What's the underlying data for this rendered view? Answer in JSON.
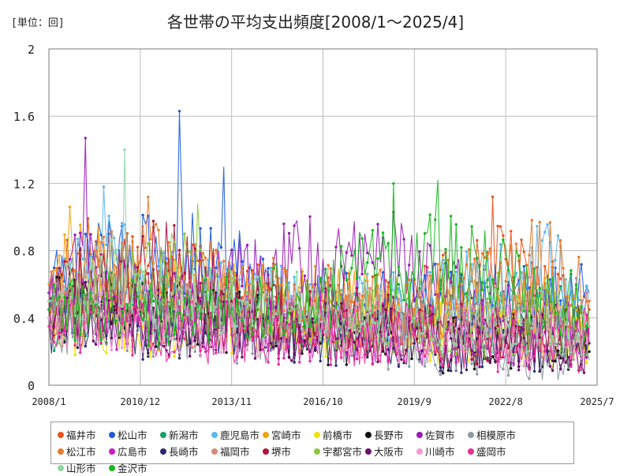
{
  "header": {
    "unit_label": "[単位：回]",
    "title": "各世帯の平均支出頻度[2008/1～2025/4]"
  },
  "chart_data": {
    "type": "line",
    "title": "各世帯の平均支出頻度[2008/1～2025/4]",
    "subtitle": "",
    "xlabel": "",
    "ylabel": "[単位：回]",
    "x_range": [
      "2008/1",
      "2025/7"
    ],
    "x_ticks": [
      "2008/1",
      "2010/12",
      "2013/11",
      "2016/10",
      "2019/9",
      "2022/8",
      "2025/7"
    ],
    "ylim": [
      0,
      2
    ],
    "y_ticks": [
      "0",
      "0.4",
      "0.8",
      "1.2",
      "1.6",
      "2"
    ],
    "grid": true,
    "legend_position": "bottom",
    "series": [
      {
        "name": "福井市",
        "color": "#e8541c",
        "keypoints": [
          [
            "2008/1",
            0.55
          ],
          [
            "2009/6",
            0.75
          ],
          [
            "2011/8",
            0.55
          ],
          [
            "2014/2",
            0.5
          ],
          [
            "2016/10",
            0.45
          ],
          [
            "2019/1",
            0.45
          ],
          [
            "2021/6",
            0.6
          ],
          [
            "2022/3",
            1.12
          ],
          [
            "2023/9",
            0.55
          ],
          [
            "2025/4",
            0.45
          ]
        ]
      },
      {
        "name": "松山市",
        "color": "#1e5bd6",
        "keypoints": [
          [
            "2008/1",
            0.55
          ],
          [
            "2009/3",
            0.9
          ],
          [
            "2012/3",
            1.63
          ],
          [
            "2013/8",
            1.3
          ],
          [
            "2016/1",
            0.45
          ],
          [
            "2019/9",
            0.5
          ],
          [
            "2022/8",
            0.5
          ],
          [
            "2025/4",
            0.55
          ]
        ]
      },
      {
        "name": "新潟市",
        "color": "#17a06b",
        "keypoints": [
          [
            "2008/1",
            0.4
          ],
          [
            "2010/6",
            0.5
          ],
          [
            "2013/11",
            0.45
          ],
          [
            "2016/10",
            0.4
          ],
          [
            "2019/9",
            0.4
          ],
          [
            "2022/8",
            0.45
          ],
          [
            "2025/4",
            0.4
          ]
        ]
      },
      {
        "name": "鹿児島市",
        "color": "#5fb8ea",
        "keypoints": [
          [
            "2008/1",
            0.6
          ],
          [
            "2009/10",
            1.18
          ],
          [
            "2012/1",
            0.55
          ],
          [
            "2016/1",
            0.5
          ],
          [
            "2019/9",
            0.45
          ],
          [
            "2024/1",
            0.85
          ],
          [
            "2025/4",
            0.5
          ]
        ]
      },
      {
        "name": "宮崎市",
        "color": "#f0a416",
        "keypoints": [
          [
            "2008/1",
            0.6
          ],
          [
            "2008/9",
            1.06
          ],
          [
            "2011/6",
            0.55
          ],
          [
            "2015/10",
            0.5
          ],
          [
            "2019/9",
            0.45
          ],
          [
            "2022/8",
            0.45
          ],
          [
            "2025/4",
            0.4
          ]
        ]
      },
      {
        "name": "前橋市",
        "color": "#f3e000",
        "keypoints": [
          [
            "2008/1",
            0.4
          ],
          [
            "2011/1",
            0.35
          ],
          [
            "2016/10",
            0.35
          ],
          [
            "2019/9",
            0.3
          ],
          [
            "2022/8",
            0.3
          ],
          [
            "2025/4",
            0.25
          ]
        ]
      },
      {
        "name": "長野市",
        "color": "#111111",
        "keypoints": [
          [
            "2008/1",
            0.45
          ],
          [
            "2010/12",
            0.4
          ],
          [
            "2013/11",
            0.4
          ],
          [
            "2016/10",
            0.3
          ],
          [
            "2019/9",
            0.25
          ],
          [
            "2022/8",
            0.25
          ],
          [
            "2025/4",
            0.2
          ]
        ]
      },
      {
        "name": "佐賀市",
        "color": "#9b1ab8",
        "keypoints": [
          [
            "2008/1",
            0.55
          ],
          [
            "2009/3",
            1.47
          ],
          [
            "2010/12",
            0.5
          ],
          [
            "2016/8",
            0.85
          ],
          [
            "2019/1",
            1.03
          ],
          [
            "2022/8",
            0.4
          ],
          [
            "2025/4",
            0.35
          ]
        ]
      },
      {
        "name": "相模原市",
        "color": "#8f9aa6",
        "keypoints": [
          [
            "2008/1",
            0.4
          ],
          [
            "2010/12",
            0.35
          ],
          [
            "2016/10",
            0.3
          ],
          [
            "2019/9",
            0.25
          ],
          [
            "2022/8",
            0.2
          ],
          [
            "2025/4",
            0.15
          ]
        ]
      },
      {
        "name": "松江市",
        "color": "#e87b2c",
        "keypoints": [
          [
            "2008/1",
            0.5
          ],
          [
            "2011/3",
            1.12
          ],
          [
            "2013/11",
            0.55
          ],
          [
            "2016/10",
            0.5
          ],
          [
            "2019/9",
            0.45
          ],
          [
            "2023/9",
            0.97
          ],
          [
            "2025/4",
            0.5
          ]
        ]
      },
      {
        "name": "広島市",
        "color": "#c81ec8",
        "keypoints": [
          [
            "2008/1",
            0.45
          ],
          [
            "2010/12",
            0.4
          ],
          [
            "2013/11",
            0.35
          ],
          [
            "2016/10",
            0.35
          ],
          [
            "2019/9",
            0.3
          ],
          [
            "2022/8",
            0.3
          ],
          [
            "2025/4",
            0.3
          ]
        ]
      },
      {
        "name": "長崎市",
        "color": "#2e2a6e",
        "keypoints": [
          [
            "2008/1",
            0.4
          ],
          [
            "2010/12",
            0.35
          ],
          [
            "2013/11",
            0.35
          ],
          [
            "2016/10",
            0.3
          ],
          [
            "2019/9",
            0.25
          ],
          [
            "2022/8",
            0.25
          ],
          [
            "2025/4",
            0.25
          ]
        ]
      },
      {
        "name": "福岡市",
        "color": "#d98a7a",
        "keypoints": [
          [
            "2008/1",
            0.45
          ],
          [
            "2010/12",
            0.45
          ],
          [
            "2013/11",
            0.4
          ],
          [
            "2016/10",
            0.4
          ],
          [
            "2019/9",
            0.35
          ],
          [
            "2022/8",
            0.35
          ],
          [
            "2025/4",
            0.35
          ]
        ]
      },
      {
        "name": "堺市",
        "color": "#b3123a",
        "keypoints": [
          [
            "2008/1",
            0.5
          ],
          [
            "2012/1",
            0.95
          ],
          [
            "2013/11",
            0.5
          ],
          [
            "2016/10",
            0.4
          ],
          [
            "2019/9",
            0.35
          ],
          [
            "2022/8",
            0.3
          ],
          [
            "2025/4",
            0.3
          ]
        ]
      },
      {
        "name": "宇都宮市",
        "color": "#8cc63f",
        "keypoints": [
          [
            "2008/1",
            0.45
          ],
          [
            "2012/10",
            1.08
          ],
          [
            "2014/1",
            0.45
          ],
          [
            "2016/10",
            0.4
          ],
          [
            "2019/9",
            0.35
          ],
          [
            "2022/8",
            0.35
          ],
          [
            "2025/4",
            0.3
          ]
        ]
      },
      {
        "name": "大阪市",
        "color": "#6a0f6a",
        "keypoints": [
          [
            "2008/1",
            0.45
          ],
          [
            "2010/12",
            0.4
          ],
          [
            "2013/11",
            0.35
          ],
          [
            "2016/10",
            0.3
          ],
          [
            "2019/9",
            0.3
          ],
          [
            "2022/8",
            0.25
          ],
          [
            "2025/4",
            0.25
          ]
        ]
      },
      {
        "name": "川崎市",
        "color": "#f29ad6",
        "keypoints": [
          [
            "2008/1",
            0.4
          ],
          [
            "2010/12",
            0.4
          ],
          [
            "2013/11",
            0.35
          ],
          [
            "2016/10",
            0.35
          ],
          [
            "2019/9",
            0.3
          ],
          [
            "2022/8",
            0.3
          ],
          [
            "2025/4",
            0.3
          ]
        ]
      },
      {
        "name": "盛岡市",
        "color": "#ec2a9a",
        "keypoints": [
          [
            "2008/1",
            0.35
          ],
          [
            "2010/12",
            0.35
          ],
          [
            "2013/11",
            0.3
          ],
          [
            "2016/10",
            0.3
          ],
          [
            "2019/9",
            0.3
          ],
          [
            "2022/8",
            0.25
          ],
          [
            "2025/4",
            0.25
          ]
        ]
      },
      {
        "name": "山形市",
        "color": "#8fd8a8",
        "keypoints": [
          [
            "2008/1",
            0.5
          ],
          [
            "2010/6",
            1.4
          ],
          [
            "2011/6",
            0.5
          ],
          [
            "2016/10",
            0.45
          ],
          [
            "2019/9",
            0.4
          ],
          [
            "2022/8",
            0.4
          ],
          [
            "2025/4",
            0.35
          ]
        ]
      },
      {
        "name": "金沢市",
        "color": "#17b81c",
        "keypoints": [
          [
            "2008/1",
            0.45
          ],
          [
            "2013/11",
            0.45
          ],
          [
            "2016/10",
            0.55
          ],
          [
            "2019/1",
            1.2
          ],
          [
            "2020/6",
            1.22
          ],
          [
            "2021/12",
            0.92
          ],
          [
            "2023/6",
            0.5
          ],
          [
            "2025/4",
            0.45
          ]
        ]
      }
    ]
  }
}
